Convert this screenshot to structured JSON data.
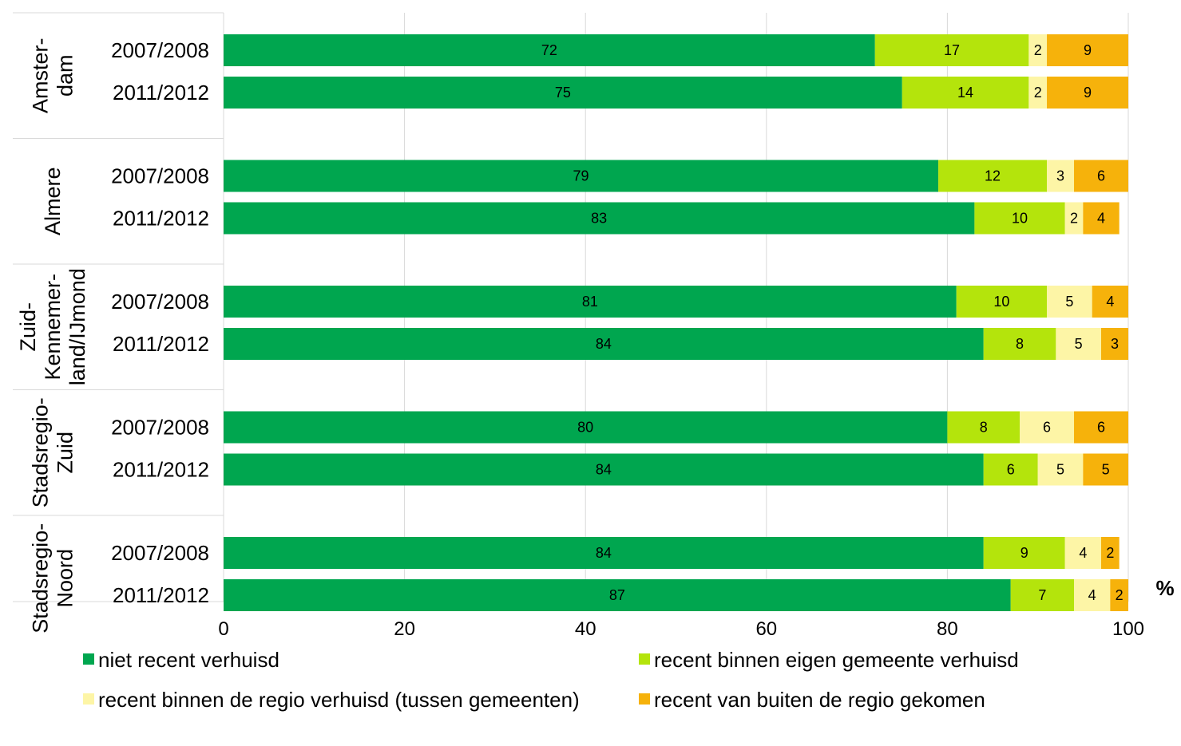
{
  "chart_data": {
    "type": "bar",
    "orientation": "horizontal",
    "stacked": true,
    "unit": "%",
    "xlim": [
      0,
      100
    ],
    "xticks": [
      "0",
      "20",
      "40",
      "60",
      "80",
      "100"
    ],
    "xtick_values": [
      0,
      20,
      40,
      60,
      80,
      100
    ],
    "series": [
      {
        "name": "niet recent verhuisd",
        "color": "#00a64f"
      },
      {
        "name": "recent binnen eigen gemeente verhuisd",
        "color": "#b4e40c"
      },
      {
        "name": "recent binnen de regio verhuisd (tussen gemeenten)",
        "color": "#fdf5a6"
      },
      {
        "name": "recent van buiten de regio gekomen",
        "color": "#f6b20b"
      }
    ],
    "groups": [
      {
        "name_lines": [
          "Amster-",
          "dam"
        ],
        "bars": [
          {
            "label": "2007/2008",
            "values": [
              72,
              17,
              2,
              9
            ]
          },
          {
            "label": "2011/2012",
            "values": [
              75,
              14,
              2,
              9
            ]
          }
        ]
      },
      {
        "name_lines": [
          "Almere"
        ],
        "bars": [
          {
            "label": "2007/2008",
            "values": [
              79,
              12,
              3,
              6
            ]
          },
          {
            "label": "2011/2012",
            "values": [
              83,
              10,
              2,
              4
            ]
          }
        ]
      },
      {
        "name_lines": [
          "Zuid-",
          "Kennemer-",
          "land/IJmond"
        ],
        "bars": [
          {
            "label": "2007/2008",
            "values": [
              81,
              10,
              5,
              4
            ]
          },
          {
            "label": "2011/2012",
            "values": [
              84,
              8,
              5,
              3
            ]
          }
        ]
      },
      {
        "name_lines": [
          "Stadsregio-",
          "Zuid"
        ],
        "bars": [
          {
            "label": "2007/2008",
            "values": [
              80,
              8,
              6,
              6
            ]
          },
          {
            "label": "2011/2012",
            "values": [
              84,
              6,
              5,
              5
            ]
          }
        ]
      },
      {
        "name_lines": [
          "Stadsregio-",
          "Noord"
        ],
        "bars": [
          {
            "label": "2007/2008",
            "values": [
              84,
              9,
              4,
              2
            ]
          },
          {
            "label": "2011/2012",
            "values": [
              87,
              7,
              4,
              2
            ]
          }
        ]
      }
    ],
    "legend_position": "bottom"
  }
}
